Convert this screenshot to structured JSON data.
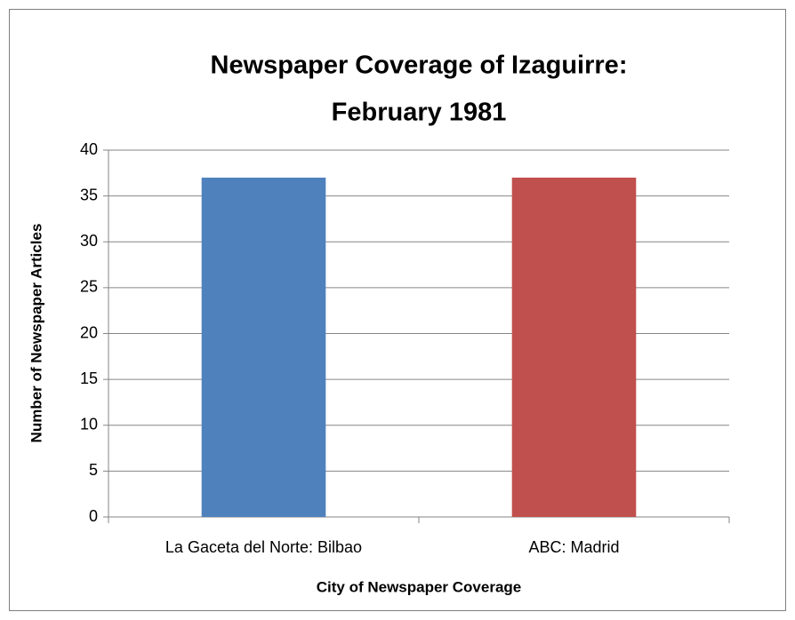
{
  "chart_data": {
    "type": "bar",
    "title": [
      "Newspaper Coverage of Izaguirre:",
      "February 1981"
    ],
    "categories": [
      "La Gaceta del Norte: Bilbao",
      "ABC: Madrid"
    ],
    "values": [
      37,
      37
    ],
    "colors": [
      "#4f81bd",
      "#c0504d"
    ],
    "xlabel": "City of Newspaper Coverage",
    "ylabel": "Number of Newspaper Articles",
    "ylim": [
      0,
      40
    ],
    "yticks": [
      0,
      5,
      10,
      15,
      20,
      25,
      30,
      35,
      40
    ],
    "grid": true
  }
}
